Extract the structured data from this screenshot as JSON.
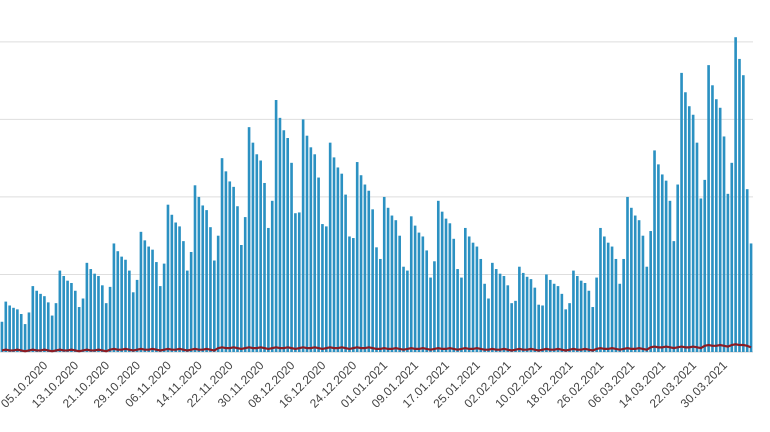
{
  "chart_data": {
    "type": "bar",
    "categories": [
      null,
      null,
      null,
      null,
      null,
      null,
      null,
      null,
      null,
      null,
      null,
      null,
      "05.10.2020",
      null,
      null,
      null,
      null,
      null,
      null,
      null,
      "13.10.2020",
      null,
      null,
      null,
      null,
      null,
      null,
      null,
      "21.10.2020",
      null,
      null,
      null,
      null,
      null,
      null,
      null,
      "29.10.2020",
      null,
      null,
      null,
      null,
      null,
      null,
      null,
      "06.11.2020",
      null,
      null,
      null,
      null,
      null,
      null,
      null,
      "14.11.2020",
      null,
      null,
      null,
      null,
      null,
      null,
      null,
      "22.11.2020",
      null,
      null,
      null,
      null,
      null,
      null,
      null,
      "30.11.2020",
      null,
      null,
      null,
      null,
      null,
      null,
      null,
      "08.12.2020",
      null,
      null,
      null,
      null,
      null,
      null,
      null,
      "16.12.2020",
      null,
      null,
      null,
      null,
      null,
      null,
      null,
      "24.12.2020",
      null,
      null,
      null,
      null,
      null,
      null,
      null,
      "01.01.2021",
      null,
      null,
      null,
      null,
      null,
      null,
      null,
      "09.01.2021",
      null,
      null,
      null,
      null,
      null,
      null,
      null,
      "17.01.2021",
      null,
      null,
      null,
      null,
      null,
      null,
      null,
      "25.01.2021",
      null,
      null,
      null,
      null,
      null,
      null,
      null,
      "02.02.2021",
      null,
      null,
      null,
      null,
      null,
      null,
      null,
      "10.02.2021",
      null,
      null,
      null,
      null,
      null,
      null,
      null,
      "18.02.2021",
      null,
      null,
      null,
      null,
      null,
      null,
      null,
      "26.02.2021",
      null,
      null,
      null,
      null,
      null,
      null,
      null,
      "06.03.2021",
      null,
      null,
      null,
      null,
      null,
      null,
      null,
      "14.03.2021",
      null,
      null,
      null,
      null,
      null,
      null,
      null,
      "22.03.2021",
      null,
      null,
      null,
      null,
      null,
      null,
      null,
      "30.03.2021",
      null,
      null,
      null,
      null,
      null,
      null
    ],
    "series": [
      {
        "type": "bar",
        "color": "#2b91c2",
        "values": [
          0.39,
          0.65,
          0.6,
          0.57,
          0.55,
          0.49,
          0.36,
          0.51,
          0.85,
          0.79,
          0.75,
          0.72,
          0.64,
          0.47,
          0.63,
          1.05,
          0.98,
          0.92,
          0.89,
          0.79,
          0.58,
          0.69,
          1.15,
          1.07,
          1.01,
          0.98,
          0.86,
          0.63,
          0.84,
          1.4,
          1.3,
          1.23,
          1.19,
          1.05,
          0.77,
          0.93,
          1.55,
          1.44,
          1.36,
          1.32,
          1.16,
          0.85,
          1.14,
          1.9,
          1.77,
          1.67,
          1.62,
          1.43,
          1.05,
          1.29,
          2.15,
          2.0,
          1.89,
          1.83,
          1.61,
          1.18,
          1.5,
          2.5,
          2.33,
          2.2,
          2.13,
          1.88,
          1.38,
          1.74,
          2.9,
          2.7,
          2.55,
          2.47,
          2.18,
          1.6,
          1.95,
          3.25,
          3.02,
          2.86,
          2.76,
          2.44,
          1.79,
          1.8,
          3.0,
          2.79,
          2.64,
          2.55,
          2.25,
          1.65,
          1.62,
          2.7,
          2.51,
          2.38,
          2.3,
          2.03,
          1.49,
          1.47,
          2.45,
          2.28,
          2.16,
          2.08,
          1.84,
          1.35,
          1.2,
          2.0,
          1.86,
          1.76,
          1.7,
          1.5,
          1.1,
          1.05,
          1.75,
          1.63,
          1.54,
          1.49,
          1.31,
          0.96,
          1.17,
          1.95,
          1.81,
          1.72,
          1.66,
          1.46,
          1.07,
          0.96,
          1.6,
          1.49,
          1.41,
          1.36,
          1.2,
          0.88,
          0.69,
          1.15,
          1.07,
          1.01,
          0.98,
          0.86,
          0.63,
          0.66,
          1.1,
          1.02,
          0.97,
          0.94,
          0.83,
          0.61,
          0.6,
          1.0,
          0.93,
          0.88,
          0.85,
          0.75,
          0.55,
          0.63,
          1.05,
          0.98,
          0.92,
          0.89,
          0.79,
          0.58,
          0.96,
          1.6,
          1.49,
          1.41,
          1.36,
          1.2,
          0.88,
          1.2,
          2.0,
          1.86,
          1.76,
          1.7,
          1.5,
          1.1,
          1.56,
          2.6,
          2.42,
          2.29,
          2.21,
          1.95,
          1.43,
          2.16,
          3.6,
          3.35,
          3.17,
          3.06,
          2.7,
          1.98,
          2.22,
          3.7,
          3.44,
          3.26,
          3.15,
          2.78,
          2.04,
          2.44,
          4.06,
          3.78,
          3.57,
          2.1,
          1.4
        ]
      },
      {
        "type": "line",
        "color": "#8b1c24",
        "values": [
          0.02,
          0.03,
          0.02,
          0.02,
          0.03,
          0.02,
          0.01,
          0.02,
          0.03,
          0.02,
          0.02,
          0.03,
          0.02,
          0.01,
          0.02,
          0.03,
          0.02,
          0.02,
          0.03,
          0.02,
          0.01,
          0.02,
          0.03,
          0.02,
          0.02,
          0.03,
          0.02,
          0.01,
          0.03,
          0.04,
          0.03,
          0.03,
          0.04,
          0.03,
          0.02,
          0.03,
          0.04,
          0.03,
          0.03,
          0.04,
          0.03,
          0.02,
          0.03,
          0.04,
          0.03,
          0.03,
          0.04,
          0.03,
          0.02,
          0.03,
          0.04,
          0.03,
          0.03,
          0.04,
          0.03,
          0.02,
          0.05,
          0.06,
          0.05,
          0.05,
          0.06,
          0.05,
          0.04,
          0.05,
          0.06,
          0.05,
          0.05,
          0.06,
          0.05,
          0.04,
          0.05,
          0.06,
          0.05,
          0.05,
          0.06,
          0.05,
          0.04,
          0.05,
          0.06,
          0.05,
          0.05,
          0.06,
          0.05,
          0.04,
          0.05,
          0.06,
          0.05,
          0.05,
          0.06,
          0.05,
          0.04,
          0.05,
          0.06,
          0.05,
          0.05,
          0.06,
          0.05,
          0.04,
          0.04,
          0.05,
          0.04,
          0.04,
          0.05,
          0.04,
          0.03,
          0.04,
          0.05,
          0.04,
          0.04,
          0.05,
          0.04,
          0.03,
          0.04,
          0.05,
          0.04,
          0.04,
          0.05,
          0.04,
          0.03,
          0.04,
          0.05,
          0.04,
          0.04,
          0.05,
          0.04,
          0.03,
          0.03,
          0.04,
          0.03,
          0.03,
          0.04,
          0.03,
          0.02,
          0.03,
          0.04,
          0.03,
          0.03,
          0.04,
          0.03,
          0.02,
          0.03,
          0.04,
          0.03,
          0.03,
          0.04,
          0.03,
          0.02,
          0.03,
          0.04,
          0.03,
          0.03,
          0.04,
          0.03,
          0.02,
          0.04,
          0.05,
          0.04,
          0.04,
          0.05,
          0.04,
          0.03,
          0.04,
          0.05,
          0.04,
          0.04,
          0.05,
          0.04,
          0.03,
          0.06,
          0.07,
          0.06,
          0.06,
          0.07,
          0.06,
          0.05,
          0.06,
          0.07,
          0.06,
          0.06,
          0.07,
          0.06,
          0.05,
          0.08,
          0.09,
          0.08,
          0.08,
          0.09,
          0.08,
          0.07,
          0.09,
          0.1,
          0.09,
          0.09,
          0.08,
          0.06
        ]
      }
    ],
    "ylim": [
      0,
      4.54
    ],
    "yticks": [
      {
        "value": 1,
        "label": null
      },
      {
        "value": 2,
        "label": null
      },
      {
        "value": 3,
        "label": null
      },
      {
        "value": 4,
        "label": null
      }
    ],
    "grid": true
  }
}
